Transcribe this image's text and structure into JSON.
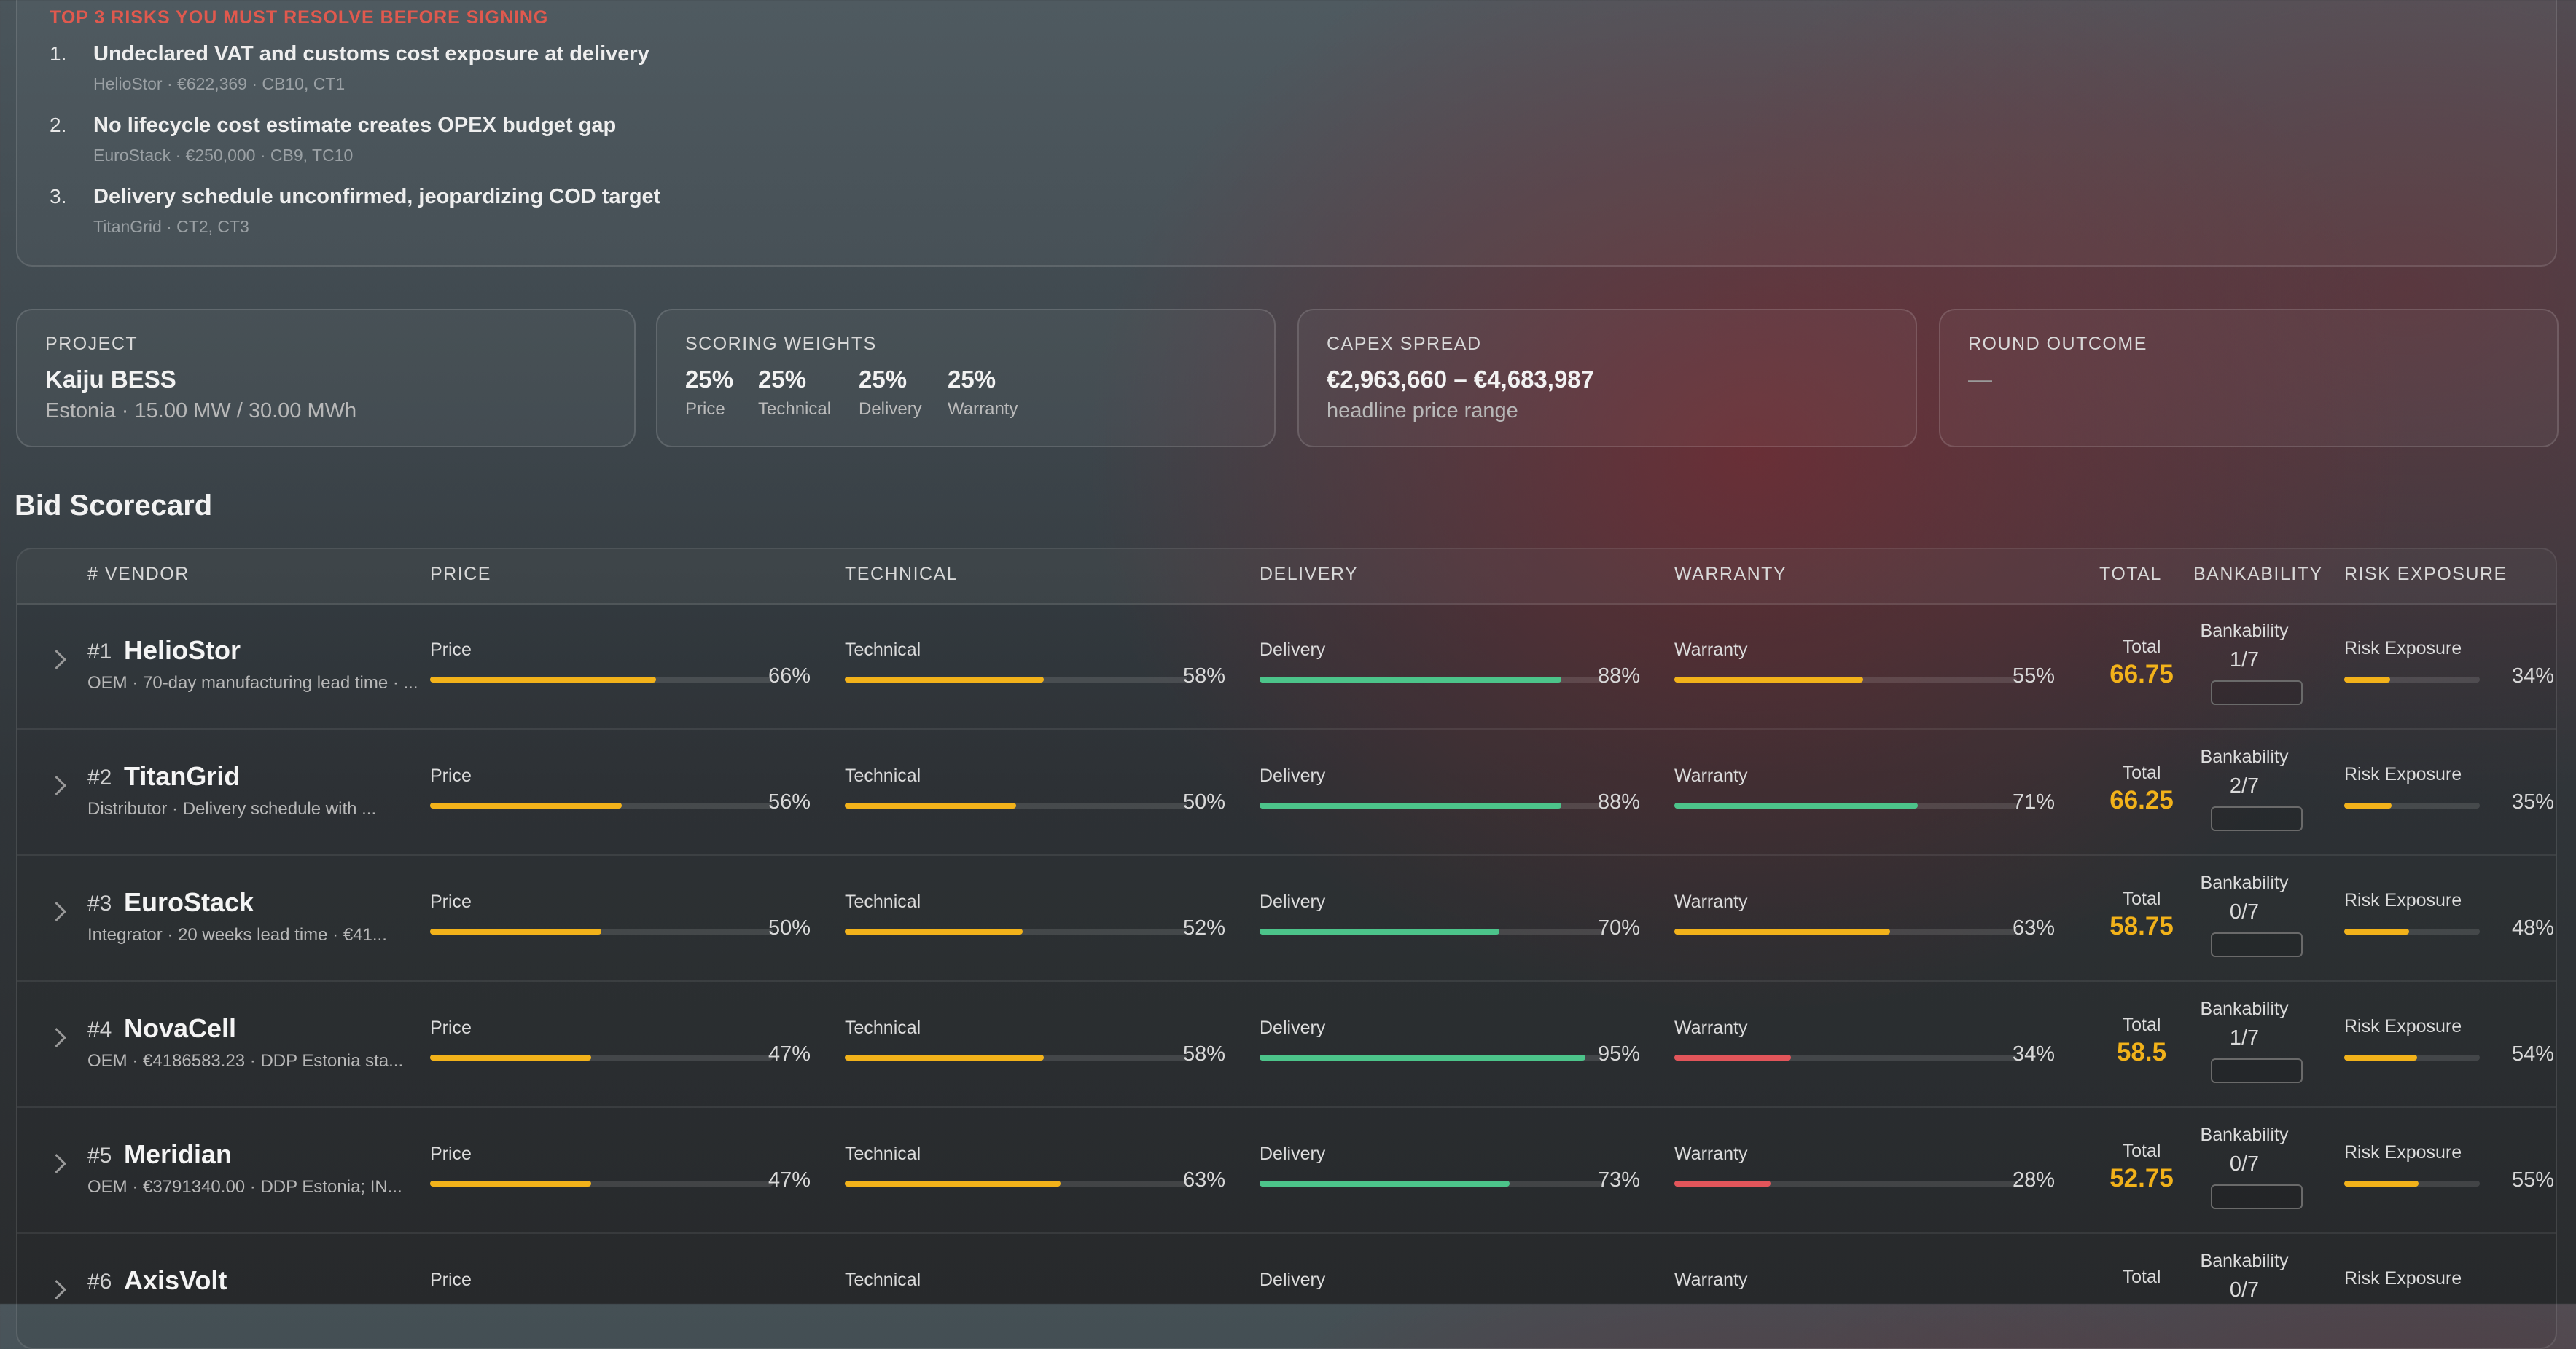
{
  "risks": {
    "heading": "TOP 3 RISKS YOU MUST RESOLVE BEFORE SIGNING",
    "items": [
      {
        "num": "1.",
        "title": "Undeclared VAT and customs cost exposure at delivery",
        "sub": "HelioStor · €622,369 · CB10, CT1"
      },
      {
        "num": "2.",
        "title": "No lifecycle cost estimate creates OPEX budget gap",
        "sub": "EuroStack · €250,000 · CB9, TC10"
      },
      {
        "num": "3.",
        "title": "Delivery schedule unconfirmed, jeopardizing COD target",
        "sub": "TitanGrid · CT2, CT3"
      }
    ]
  },
  "cards": {
    "project": {
      "label": "PROJECT",
      "value": "Kaiju BESS",
      "sub": "Estonia · 15.00 MW / 30.00 MWh"
    },
    "weights": {
      "label": "SCORING WEIGHTS",
      "items": [
        {
          "pct": "25%",
          "label": "Price"
        },
        {
          "pct": "25%",
          "label": "Technical"
        },
        {
          "pct": "25%",
          "label": "Delivery"
        },
        {
          "pct": "25%",
          "label": "Warranty"
        }
      ]
    },
    "capex": {
      "label": "CAPEX SPREAD",
      "value": "€2,963,660 – €4,683,987",
      "sub": "headline price range"
    },
    "outcome": {
      "label": "ROUND OUTCOME",
      "value": "—"
    }
  },
  "scorecard": {
    "title": "Bid Scorecard",
    "headers": {
      "vendor": "# VENDOR",
      "price": "PRICE",
      "technical": "TECHNICAL",
      "delivery": "DELIVERY",
      "warranty": "WARRANTY",
      "total": "TOTAL",
      "bankability": "BANKABILITY",
      "risk": "RISK EXPOSURE"
    },
    "labels": {
      "price": "Price",
      "technical": "Technical",
      "delivery": "Delivery",
      "warranty": "Warranty",
      "total": "Total",
      "bankability": "Bankability",
      "risk": "Risk Exposure"
    },
    "colors": {
      "yellow": "#f2b21a",
      "green": "#4cc48a",
      "red": "#e2555a"
    },
    "rows": [
      {
        "rank": "#1",
        "name": "HelioStor",
        "desc": "OEM · 70-day manufacturing lead time · ...",
        "price": 66,
        "technical": 58,
        "delivery": 88,
        "warranty": 55,
        "price_txt": "66%",
        "technical_txt": "58%",
        "delivery_txt": "88%",
        "warranty_txt": "55%",
        "total": "66.75",
        "bank": "1/7",
        "risk": 34,
        "risk_txt": "34%"
      },
      {
        "rank": "#2",
        "name": "TitanGrid",
        "desc": "Distributor · Delivery schedule with ...",
        "price": 56,
        "technical": 50,
        "delivery": 88,
        "warranty": 71,
        "price_txt": "56%",
        "technical_txt": "50%",
        "delivery_txt": "88%",
        "warranty_txt": "71%",
        "total": "66.25",
        "bank": "2/7",
        "risk": 35,
        "risk_txt": "35%"
      },
      {
        "rank": "#3",
        "name": "EuroStack",
        "desc": "Integrator · 20 weeks lead time · €41...",
        "price": 50,
        "technical": 52,
        "delivery": 70,
        "warranty": 63,
        "price_txt": "50%",
        "technical_txt": "52%",
        "delivery_txt": "70%",
        "warranty_txt": "63%",
        "total": "58.75",
        "bank": "0/7",
        "risk": 48,
        "risk_txt": "48%"
      },
      {
        "rank": "#4",
        "name": "NovaCell",
        "desc": "OEM · €4186583.23 · DDP Estonia sta...",
        "price": 47,
        "technical": 58,
        "delivery": 95,
        "warranty": 34,
        "price_txt": "47%",
        "technical_txt": "58%",
        "delivery_txt": "95%",
        "warranty_txt": "34%",
        "total": "58.5",
        "bank": "1/7",
        "risk": 54,
        "risk_txt": "54%"
      },
      {
        "rank": "#5",
        "name": "Meridian",
        "desc": "OEM · €3791340.00 · DDP Estonia; IN...",
        "price": 47,
        "technical": 63,
        "delivery": 73,
        "warranty": 28,
        "price_txt": "47%",
        "technical_txt": "63%",
        "delivery_txt": "73%",
        "warranty_txt": "28%",
        "total": "52.75",
        "bank": "0/7",
        "risk": 55,
        "risk_txt": "55%"
      },
      {
        "rank": "#6",
        "name": "AxisVolt",
        "desc": "",
        "price": 0,
        "technical": 0,
        "delivery": 0,
        "warranty": 0,
        "price_txt": "",
        "technical_txt": "",
        "delivery_txt": "",
        "warranty_txt": "",
        "total": "",
        "bank": "0/7",
        "risk": 0,
        "risk_txt": ""
      }
    ]
  }
}
